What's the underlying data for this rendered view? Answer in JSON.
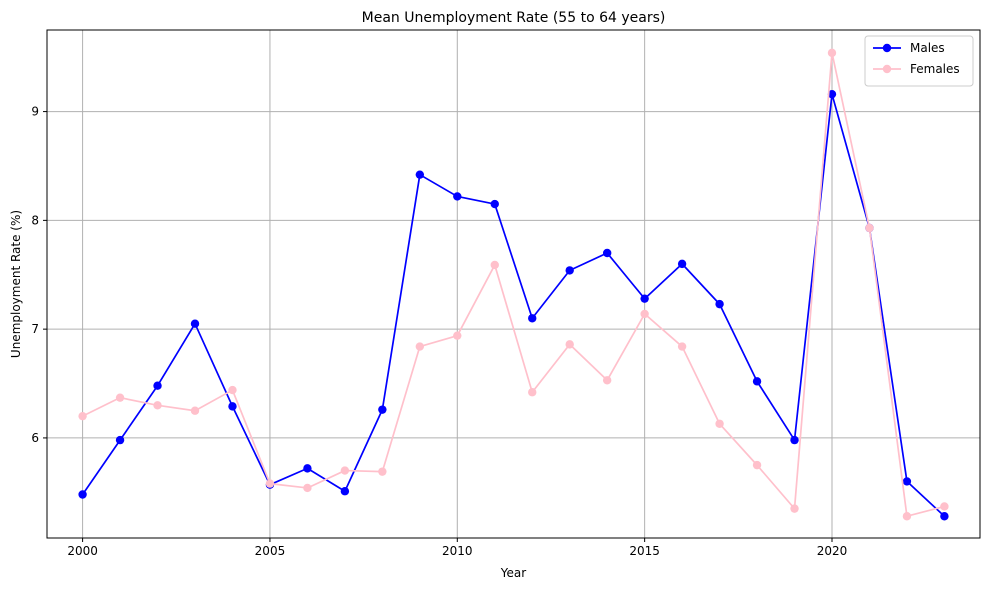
{
  "chart_data": {
    "type": "line",
    "title": "Mean Unemployment Rate (55 to 64 years)",
    "xlabel": "Year",
    "ylabel": "Unemployment Rate (%)",
    "x": [
      2000,
      2001,
      2002,
      2003,
      2004,
      2005,
      2006,
      2007,
      2008,
      2009,
      2010,
      2011,
      2012,
      2013,
      2014,
      2015,
      2016,
      2017,
      2018,
      2019,
      2020,
      2021,
      2022,
      2023
    ],
    "xlim": [
      1999.05,
      2023.95
    ],
    "ylim": [
      5.08,
      9.75
    ],
    "xticks": [
      2000,
      2005,
      2010,
      2015,
      2020
    ],
    "xtick_labels": [
      "2000",
      "2005",
      "2010",
      "2015",
      "2020"
    ],
    "yticks": [
      6,
      7,
      8,
      9
    ],
    "ytick_labels": [
      "6",
      "7",
      "8",
      "9"
    ],
    "grid": true,
    "legend_position": "top-right",
    "series": [
      {
        "name": "Males",
        "color": "#0000ff",
        "marker": "circle",
        "values": [
          5.48,
          5.98,
          6.48,
          7.05,
          6.29,
          5.57,
          5.72,
          5.51,
          6.26,
          8.42,
          8.22,
          8.15,
          7.1,
          7.54,
          7.7,
          7.28,
          7.6,
          7.23,
          6.52,
          5.98,
          9.16,
          7.93,
          5.6,
          5.28
        ]
      },
      {
        "name": "Females",
        "color": "#ffc0cb",
        "marker": "circle",
        "values": [
          6.2,
          6.37,
          6.3,
          6.25,
          6.44,
          5.58,
          5.54,
          5.7,
          5.69,
          6.84,
          6.94,
          7.59,
          6.42,
          6.86,
          6.53,
          7.14,
          6.84,
          6.13,
          5.75,
          5.35,
          9.54,
          7.93,
          5.28,
          5.37
        ]
      }
    ]
  }
}
